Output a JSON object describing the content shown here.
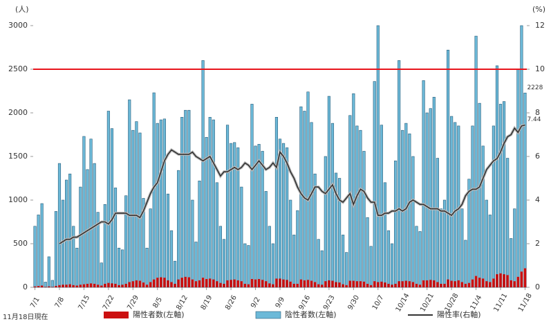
{
  "chart_data": {
    "type": "bar",
    "ylabel": "(人)",
    "y2label": "(%)",
    "note": "11月18日現在",
    "ylim": [
      0,
      3000
    ],
    "yticks": [
      0,
      500,
      1000,
      1500,
      2000,
      2500,
      3000
    ],
    "y2lim": [
      0,
      12
    ],
    "y2ticks": [
      0,
      2,
      4,
      6,
      8,
      10,
      12
    ],
    "hlines": [
      {
        "value": 2500,
        "color": "#e8141b"
      }
    ],
    "categories": [
      "7/1",
      null,
      null,
      null,
      null,
      null,
      null,
      "7/8",
      null,
      null,
      null,
      null,
      null,
      null,
      "7/15",
      null,
      null,
      null,
      null,
      null,
      null,
      "7/22",
      null,
      null,
      null,
      null,
      null,
      null,
      "7/29",
      null,
      null,
      null,
      null,
      null,
      null,
      "8/5",
      null,
      null,
      null,
      null,
      null,
      null,
      "8/12",
      null,
      null,
      null,
      null,
      null,
      null,
      "8/19",
      null,
      null,
      null,
      null,
      null,
      null,
      "8/26",
      null,
      null,
      null,
      null,
      null,
      null,
      "9/2",
      null,
      null,
      null,
      null,
      null,
      null,
      "9/9",
      null,
      null,
      null,
      null,
      null,
      null,
      "9/16",
      null,
      null,
      null,
      null,
      null,
      null,
      "9/23",
      null,
      null,
      null,
      null,
      null,
      null,
      "9/30",
      null,
      null,
      null,
      null,
      null,
      null,
      "10/7",
      null,
      null,
      null,
      null,
      null,
      null,
      "10/14",
      null,
      null,
      null,
      null,
      null,
      null,
      "10/21",
      null,
      null,
      null,
      null,
      null,
      null,
      "10/28",
      null,
      null,
      null,
      null,
      null,
      null,
      "11/4",
      null,
      null,
      null,
      null,
      null,
      null,
      "11/11",
      null,
      null,
      null,
      null,
      null,
      null,
      "11/18"
    ],
    "series": [
      {
        "name": "陽性者数(左軸)",
        "color": "#cc1010",
        "values": [
          10,
          15,
          20,
          5,
          10,
          5,
          15,
          25,
          30,
          30,
          35,
          25,
          20,
          30,
          35,
          40,
          45,
          40,
          30,
          20,
          40,
          50,
          45,
          40,
          25,
          30,
          40,
          60,
          70,
          80,
          75,
          55,
          30,
          60,
          90,
          110,
          115,
          110,
          80,
          60,
          40,
          90,
          110,
          120,
          115,
          90,
          70,
          80,
          110,
          95,
          100,
          90,
          70,
          50,
          40,
          80,
          85,
          90,
          80,
          70,
          40,
          35,
          95,
          90,
          95,
          85,
          70,
          45,
          35,
          100,
          100,
          90,
          85,
          65,
          40,
          40,
          90,
          80,
          85,
          75,
          60,
          35,
          30,
          70,
          80,
          75,
          60,
          55,
          35,
          25,
          75,
          75,
          70,
          70,
          65,
          40,
          25,
          70,
          60,
          65,
          55,
          40,
          30,
          40,
          70,
          70,
          75,
          70,
          60,
          40,
          30,
          80,
          80,
          85,
          80,
          60,
          40,
          40,
          90,
          75,
          70,
          80,
          60,
          40,
          50,
          90,
          130,
          110,
          100,
          70,
          60,
          100,
          150,
          160,
          150,
          140,
          80,
          70,
          120,
          180,
          218
        ]
      },
      {
        "name": "陰性者数(左軸)",
        "color": "#6cb9d8",
        "values": [
          700,
          830,
          960,
          60,
          350,
          80,
          870,
          1420,
          1000,
          1230,
          1300,
          700,
          450,
          1150,
          1730,
          1350,
          1700,
          1420,
          860,
          280,
          950,
          2020,
          1820,
          1140,
          450,
          430,
          1050,
          2150,
          1800,
          1900,
          1770,
          1020,
          450,
          900,
          2230,
          1880,
          1920,
          1930,
          1070,
          650,
          300,
          1340,
          1950,
          2030,
          2030,
          1000,
          520,
          1220,
          2600,
          1720,
          1950,
          1920,
          1200,
          700,
          550,
          1860,
          1650,
          1660,
          1600,
          1150,
          500,
          480,
          2100,
          1620,
          1640,
          1560,
          1100,
          700,
          500,
          1950,
          1700,
          1650,
          1600,
          1000,
          600,
          880,
          2070,
          2020,
          2240,
          1890,
          1300,
          550,
          420,
          1500,
          2190,
          1880,
          1310,
          1250,
          600,
          400,
          1970,
          2220,
          1850,
          1800,
          1560,
          800,
          470,
          2360,
          3000,
          1860,
          1200,
          650,
          500,
          1450,
          2600,
          1800,
          1880,
          1760,
          1500,
          700,
          640,
          2370,
          2000,
          2050,
          2180,
          1480,
          900,
          1000,
          2720,
          1960,
          1890,
          1850,
          900,
          540,
          1240,
          1850,
          2880,
          2110,
          1620,
          1000,
          830,
          1850,
          2540,
          2100,
          2130,
          1480,
          560,
          900,
          2500,
          3000,
          2228
        ]
      },
      {
        "name": "陽性率(右軸)",
        "color": "#333333",
        "axis": "y2",
        "values": [
          null,
          null,
          null,
          null,
          null,
          null,
          null,
          2.0,
          2.1,
          2.2,
          2.2,
          2.3,
          2.3,
          2.4,
          2.5,
          2.6,
          2.7,
          2.8,
          2.9,
          3.0,
          3.0,
          2.9,
          3.1,
          3.4,
          3.4,
          3.4,
          3.4,
          3.3,
          3.3,
          3.3,
          3.2,
          3.5,
          3.9,
          4.3,
          4.6,
          4.8,
          5.3,
          5.8,
          6.1,
          6.3,
          6.2,
          6.1,
          6.1,
          6.1,
          6.1,
          6.2,
          6.0,
          5.9,
          5.8,
          5.9,
          6.0,
          5.7,
          5.4,
          5.1,
          5.3,
          5.3,
          5.4,
          5.5,
          5.4,
          5.5,
          5.7,
          5.6,
          5.4,
          5.6,
          5.8,
          5.6,
          5.4,
          5.5,
          5.7,
          5.5,
          6.2,
          6.0,
          5.7,
          5.3,
          5.0,
          4.6,
          4.3,
          4.1,
          4.0,
          4.3,
          4.6,
          4.6,
          4.4,
          4.3,
          4.5,
          4.7,
          4.3,
          4.0,
          3.9,
          4.1,
          4.3,
          3.8,
          4.2,
          4.5,
          4.4,
          4.1,
          3.9,
          3.9,
          3.3,
          3.3,
          3.4,
          3.4,
          3.5,
          3.5,
          3.6,
          3.5,
          3.6,
          3.9,
          4.0,
          3.9,
          3.8,
          3.8,
          3.7,
          3.6,
          3.6,
          3.6,
          3.5,
          3.5,
          3.4,
          3.3,
          3.5,
          3.6,
          3.8,
          4.2,
          4.4,
          4.5,
          4.5,
          4.6,
          5.0,
          5.4,
          5.6,
          5.8,
          5.9,
          6.2,
          6.6,
          6.9,
          7.0,
          7.3,
          7.1,
          7.4,
          7.44
        ]
      }
    ]
  }
}
